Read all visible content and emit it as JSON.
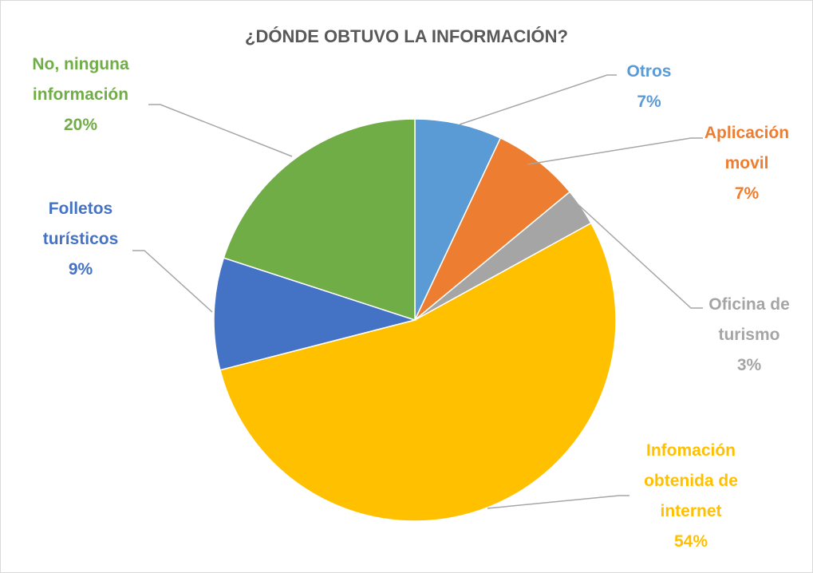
{
  "chart_data": {
    "type": "pie",
    "title": "¿DÓNDE OBTUVO LA INFORMACIÓN?",
    "categories": [
      "Otros",
      "Aplicación movil",
      "Oficina de turismo",
      "Infomación obtenida de internet",
      "Folletos turísticos",
      "No, ninguna información"
    ],
    "values": [
      7,
      7,
      3,
      54,
      9,
      20
    ],
    "value_labels": [
      "7%",
      "7%",
      "3%",
      "54%",
      "9%",
      "20%"
    ],
    "colors": [
      "#5b9bd5",
      "#ed7d31",
      "#a5a5a5",
      "#ffc000",
      "#4472c4",
      "#70ad47"
    ]
  }
}
